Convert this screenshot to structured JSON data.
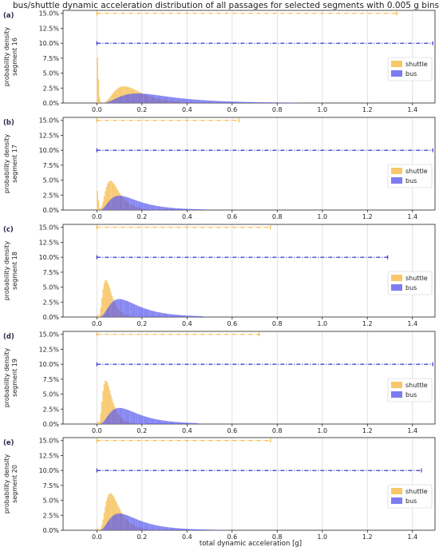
{
  "figure": {
    "title": "bus/shuttle dynamic acceleration distribution of all passages for selected segments with 0.005 g bins",
    "xlabel": "total dynamic acceleration [g]",
    "colors": {
      "shuttle": "#f5b942",
      "bus": "#5b5bef",
      "shuttle_line": "#f2a91e",
      "bus_line": "#1a1acc",
      "grid": "#d9d9d9"
    }
  },
  "chart_data": [
    {
      "type": "bar",
      "panel_label": "(a)",
      "ylabel": "probability density\nsegment 16",
      "xlim": [
        -0.15,
        1.5
      ],
      "ylim": [
        0,
        15.5
      ],
      "xticks": [
        "0.0",
        "0.2",
        "0.4",
        "0.6",
        "0.8",
        "1.0",
        "1.2",
        "1.4"
      ],
      "yticks": [
        "0.0%",
        "2.5%",
        "5.0%",
        "7.5%",
        "10.0%",
        "12.5%",
        "15.0%"
      ],
      "legend": [
        "shuttle",
        "bus"
      ],
      "series": [
        {
          "name": "shuttle",
          "peak_x": 0.12,
          "peak_y": 2.8,
          "spike_x": 0.0,
          "spike_y": 7.6,
          "max_x": 0.8,
          "range_line": {
            "y": 15.0,
            "x0": 0.0,
            "x1": 1.33
          }
        },
        {
          "name": "bus",
          "peak_x": 0.18,
          "peak_y": 1.6,
          "max_x": 0.9,
          "range_line": {
            "y": 10.0,
            "x0": 0.0,
            "x1": 1.49
          }
        }
      ]
    },
    {
      "type": "bar",
      "panel_label": "(b)",
      "ylabel": "probability density\nsegment 17",
      "xlim": [
        -0.15,
        1.5
      ],
      "ylim": [
        0,
        15.5
      ],
      "xticks": [
        "0.0",
        "0.2",
        "0.4",
        "0.6",
        "0.8",
        "1.0",
        "1.2",
        "1.4"
      ],
      "yticks": [
        "0.0%",
        "2.5%",
        "5.0%",
        "7.5%",
        "10.0%",
        "12.5%",
        "15.0%"
      ],
      "legend": [
        "shuttle",
        "bus"
      ],
      "series": [
        {
          "name": "shuttle",
          "peak_x": 0.06,
          "peak_y": 4.9,
          "spike_x": 0.0,
          "spike_y": 3.2,
          "max_x": 0.3,
          "range_line": {
            "y": 15.0,
            "x0": 0.0,
            "x1": 0.63
          }
        },
        {
          "name": "bus",
          "peak_x": 0.1,
          "peak_y": 2.4,
          "max_x": 0.48,
          "range_line": {
            "y": 10.0,
            "x0": 0.0,
            "x1": 1.49
          }
        }
      ]
    },
    {
      "type": "bar",
      "panel_label": "(c)",
      "ylabel": "probability density\nsegment 18",
      "xlim": [
        -0.15,
        1.5
      ],
      "ylim": [
        0,
        15.5
      ],
      "xticks": [
        "0.0",
        "0.2",
        "0.4",
        "0.6",
        "0.8",
        "1.0",
        "1.2",
        "1.4"
      ],
      "yticks": [
        "0.0%",
        "2.5%",
        "5.0%",
        "7.5%",
        "10.0%",
        "12.5%",
        "15.0%"
      ],
      "legend": [
        "shuttle",
        "bus"
      ],
      "series": [
        {
          "name": "shuttle",
          "peak_x": 0.04,
          "peak_y": 6.2,
          "spike_x": 0.0,
          "spike_y": 0.4,
          "max_x": 0.3,
          "range_line": {
            "y": 15.0,
            "x0": 0.0,
            "x1": 0.77
          }
        },
        {
          "name": "bus",
          "peak_x": 0.1,
          "peak_y": 3.0,
          "max_x": 0.47,
          "range_line": {
            "y": 10.0,
            "x0": 0.0,
            "x1": 1.29
          }
        }
      ]
    },
    {
      "type": "bar",
      "panel_label": "(d)",
      "ylabel": "probability density\nsegment 19",
      "xlim": [
        -0.15,
        1.5
      ],
      "ylim": [
        0,
        15.5
      ],
      "xticks": [
        "0.0",
        "0.2",
        "0.4",
        "0.6",
        "0.8",
        "1.0",
        "1.2",
        "1.4"
      ],
      "yticks": [
        "0.0%",
        "2.5%",
        "5.0%",
        "7.5%",
        "10.0%",
        "12.5%",
        "15.0%"
      ],
      "legend": [
        "shuttle",
        "bus"
      ],
      "series": [
        {
          "name": "shuttle",
          "peak_x": 0.04,
          "peak_y": 7.3,
          "spike_x": 0.0,
          "spike_y": 0.4,
          "max_x": 0.28,
          "range_line": {
            "y": 15.0,
            "x0": 0.0,
            "x1": 0.72
          }
        },
        {
          "name": "bus",
          "peak_x": 0.1,
          "peak_y": 2.7,
          "max_x": 0.45,
          "range_line": {
            "y": 10.0,
            "x0": 0.0,
            "x1": 1.49
          }
        }
      ]
    },
    {
      "type": "bar",
      "panel_label": "(e)",
      "ylabel": "probability density\nsegment 20",
      "xlim": [
        -0.15,
        1.5
      ],
      "ylim": [
        0,
        15.5
      ],
      "xticks": [
        "0.0",
        "0.2",
        "0.4",
        "0.6",
        "0.8",
        "1.0",
        "1.2",
        "1.4"
      ],
      "yticks": [
        "0.0%",
        "2.5%",
        "5.0%",
        "7.5%",
        "10.0%",
        "12.5%",
        "15.0%"
      ],
      "legend": [
        "shuttle",
        "bus"
      ],
      "series": [
        {
          "name": "shuttle",
          "peak_x": 0.06,
          "peak_y": 6.2,
          "spike_x": 0.0,
          "spike_y": 0.4,
          "max_x": 0.32,
          "range_line": {
            "y": 15.0,
            "x0": 0.0,
            "x1": 0.77
          }
        },
        {
          "name": "bus",
          "peak_x": 0.1,
          "peak_y": 2.8,
          "max_x": 0.58,
          "range_line": {
            "y": 10.0,
            "x0": 0.0,
            "x1": 1.44
          }
        }
      ]
    }
  ]
}
